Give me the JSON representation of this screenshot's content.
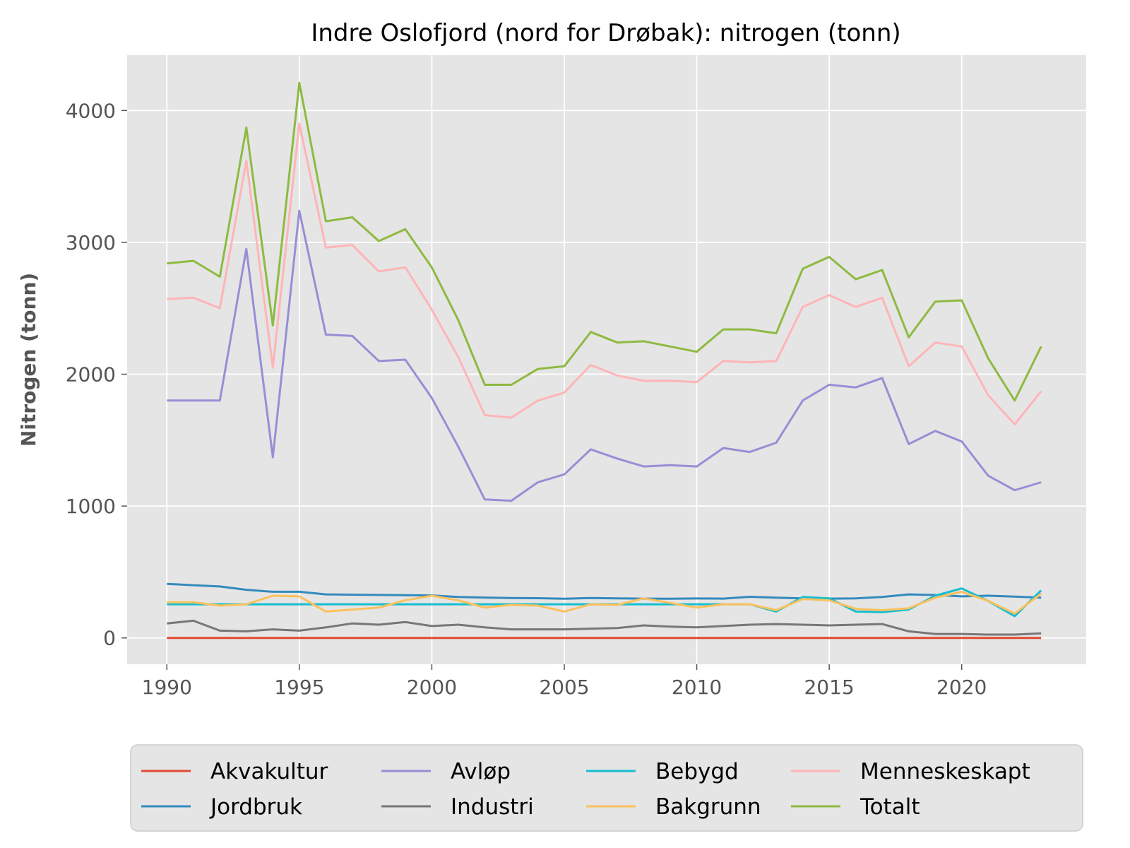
{
  "chart_data": {
    "type": "line",
    "title": "Indre Oslofjord (nord for Drøbak): nitrogen (tonn)",
    "xlabel": "",
    "ylabel": "Nitrogen (tonn)",
    "xlim": [
      1988.5,
      2024.7
    ],
    "ylim": [
      -200,
      4420
    ],
    "xticks": [
      1990,
      1995,
      2000,
      2005,
      2010,
      2015,
      2020
    ],
    "yticks": [
      0,
      1000,
      2000,
      3000,
      4000
    ],
    "grid": true,
    "legend_position": "bottom",
    "x": [
      1990,
      1991,
      1992,
      1993,
      1994,
      1995,
      1996,
      1997,
      1998,
      1999,
      2000,
      2001,
      2002,
      2003,
      2004,
      2005,
      2006,
      2007,
      2008,
      2009,
      2010,
      2011,
      2012,
      2013,
      2014,
      2015,
      2016,
      2017,
      2018,
      2019,
      2020,
      2021,
      2022,
      2023
    ],
    "series": [
      {
        "name": "Akvakultur",
        "color": "#E24A33",
        "values": [
          0,
          0,
          0,
          0,
          0,
          0,
          0,
          0,
          0,
          0,
          0,
          0,
          0,
          0,
          0,
          0,
          0,
          0,
          0,
          0,
          0,
          0,
          0,
          0,
          0,
          0,
          0,
          0,
          0,
          0,
          0,
          0,
          0,
          0
        ]
      },
      {
        "name": "Jordbruk",
        "color": "#348ABD",
        "values": [
          410,
          400,
          390,
          365,
          350,
          350,
          330,
          328,
          326,
          324,
          322,
          310,
          306,
          303,
          301,
          297,
          302,
          300,
          298,
          297,
          299,
          298,
          312,
          305,
          300,
          298,
          300,
          310,
          330,
          325,
          315,
          320,
          313,
          305
        ]
      },
      {
        "name": "Avløp",
        "color": "#988ED5",
        "values": [
          1800,
          1800,
          1800,
          2950,
          1370,
          3240,
          2300,
          2290,
          2100,
          2110,
          1820,
          1450,
          1050,
          1040,
          1180,
          1240,
          1430,
          1360,
          1300,
          1310,
          1300,
          1440,
          1410,
          1480,
          1800,
          1920,
          1900,
          1970,
          1470,
          1570,
          1490,
          1230,
          1120,
          1180
        ]
      },
      {
        "name": "Industri",
        "color": "#777777",
        "values": [
          110,
          130,
          55,
          50,
          65,
          55,
          80,
          110,
          100,
          120,
          90,
          100,
          80,
          65,
          65,
          65,
          70,
          75,
          95,
          85,
          80,
          90,
          100,
          105,
          100,
          95,
          100,
          105,
          50,
          30,
          30,
          25,
          25,
          35
        ]
      },
      {
        "name": "Bebygd",
        "color": "#17BECF",
        "values": [
          255,
          255,
          255,
          255,
          255,
          255,
          255,
          255,
          255,
          255,
          255,
          255,
          255,
          255,
          255,
          255,
          255,
          255,
          255,
          255,
          255,
          255,
          255,
          200,
          310,
          300,
          200,
          195,
          215,
          320,
          375,
          280,
          165,
          360
        ]
      },
      {
        "name": "Bakgrunn",
        "color": "#FBC15E",
        "values": [
          270,
          270,
          245,
          255,
          320,
          315,
          200,
          215,
          230,
          285,
          320,
          285,
          230,
          250,
          245,
          200,
          255,
          250,
          300,
          265,
          230,
          255,
          255,
          210,
          295,
          285,
          220,
          210,
          225,
          305,
          350,
          280,
          185,
          335
        ]
      },
      {
        "name": "Menneskeskapt",
        "color": "#FFB5B8",
        "values": [
          2570,
          2580,
          2500,
          3620,
          2050,
          3900,
          2960,
          2980,
          2780,
          2810,
          2490,
          2130,
          1690,
          1670,
          1800,
          1860,
          2070,
          1990,
          1950,
          1950,
          1940,
          2100,
          2090,
          2100,
          2510,
          2600,
          2510,
          2580,
          2060,
          2240,
          2210,
          1840,
          1620,
          1870
        ]
      },
      {
        "name": "Totalt",
        "color": "#8EBA42",
        "values": [
          2840,
          2860,
          2740,
          3870,
          2370,
          4210,
          3160,
          3190,
          3010,
          3100,
          2810,
          2410,
          1920,
          1920,
          2040,
          2060,
          2320,
          2240,
          2250,
          2210,
          2170,
          2340,
          2340,
          2310,
          2800,
          2890,
          2720,
          2790,
          2280,
          2550,
          2560,
          2120,
          1800,
          2210
        ]
      }
    ]
  }
}
